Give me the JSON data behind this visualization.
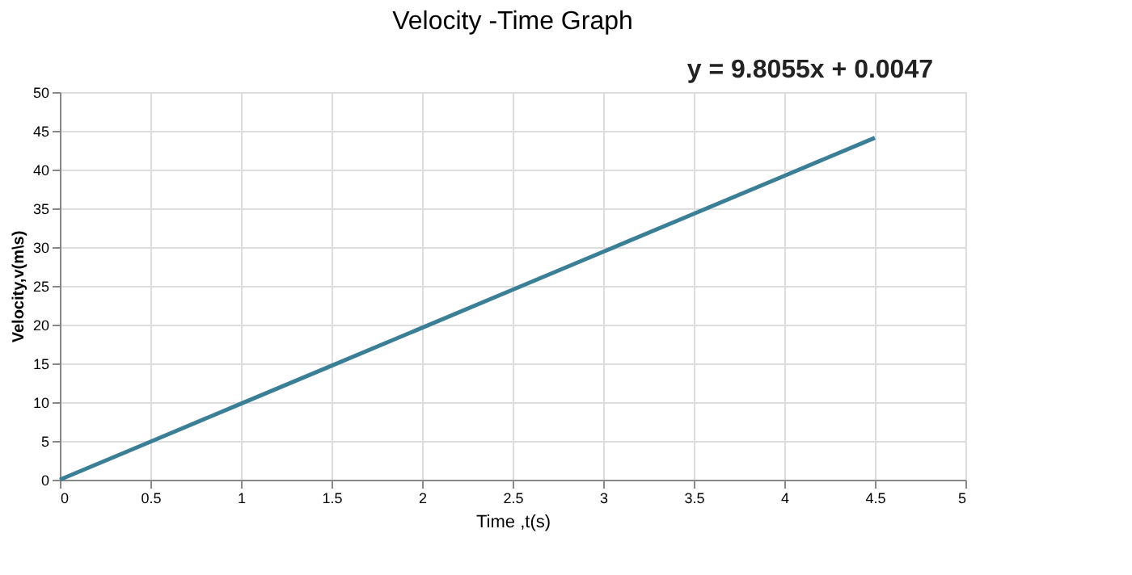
{
  "chart_data": {
    "type": "line",
    "title": "Velocity -Time Graph",
    "xlabel": "Time ,t(s)",
    "ylabel": "Velocity,v(m\\s)",
    "x": [
      0,
      0.5,
      1,
      1.5,
      2,
      2.5,
      3,
      3.5,
      4,
      4.5
    ],
    "series": [
      {
        "color": "#3a7f96",
        "values": [
          0,
          4.9,
          9.8,
          14.7,
          19.6,
          24.5,
          29.4,
          34.3,
          39.2,
          44.1
        ]
      }
    ],
    "xlim": [
      0,
      5
    ],
    "xticks": [
      0,
      0.5,
      1,
      1.5,
      2,
      2.5,
      3,
      3.5,
      4,
      4.5,
      5
    ],
    "ylim": [
      0,
      50
    ],
    "yticks": [
      0,
      5,
      10,
      15,
      20,
      25,
      30,
      35,
      40,
      45,
      50
    ],
    "grid": true,
    "marker": "none",
    "line_style": "solid",
    "annotations": [
      "y = 9.8055x + 0.0047"
    ]
  }
}
